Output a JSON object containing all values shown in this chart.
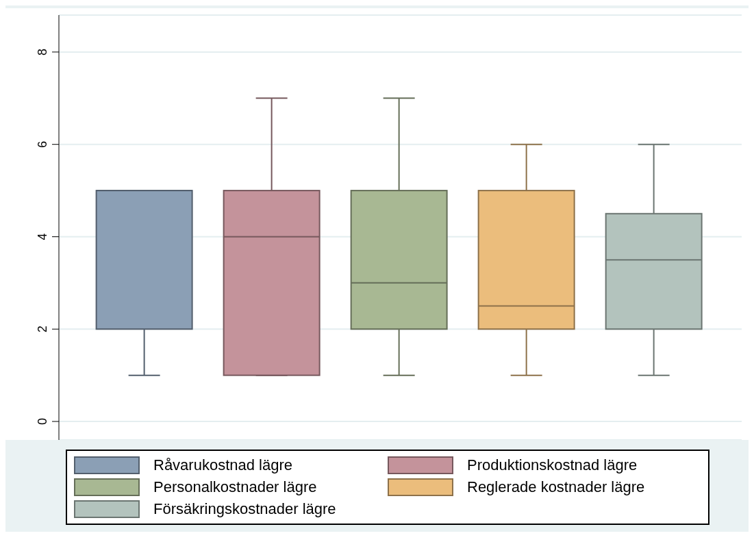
{
  "chart_data": {
    "type": "box",
    "categories": [
      null
    ],
    "ylim": [
      -0.4,
      8.8
    ],
    "yticks": [
      0,
      2,
      4,
      6,
      8
    ],
    "grid": "y",
    "legend": "bottom",
    "series": [
      {
        "name": "Råvarukostnad lägre",
        "color": "#8b9fb5",
        "boxes": [
          {
            "low": 1,
            "q1": 2,
            "median": 5,
            "q3": 5,
            "high": 5
          }
        ]
      },
      {
        "name": "Produktionskostnad lägre",
        "color": "#c4939b",
        "boxes": [
          {
            "low": 1,
            "q1": 1,
            "median": 4,
            "q3": 5,
            "high": 7
          }
        ]
      },
      {
        "name": "Personalkostnader lägre",
        "color": "#a8b893",
        "boxes": [
          {
            "low": 1,
            "q1": 2,
            "median": 3,
            "q3": 5,
            "high": 7
          }
        ]
      },
      {
        "name": "Reglerade kostnader lägre",
        "color": "#ebbd7c",
        "boxes": [
          {
            "low": 1,
            "q1": 2,
            "median": 2.5,
            "q3": 5,
            "high": 6
          }
        ]
      },
      {
        "name": "Försäkringskostnader lägre",
        "color": "#b3c3bd",
        "boxes": [
          {
            "low": 1,
            "q1": 2,
            "median": 3.5,
            "q3": 4.5,
            "high": 6
          }
        ]
      }
    ]
  }
}
